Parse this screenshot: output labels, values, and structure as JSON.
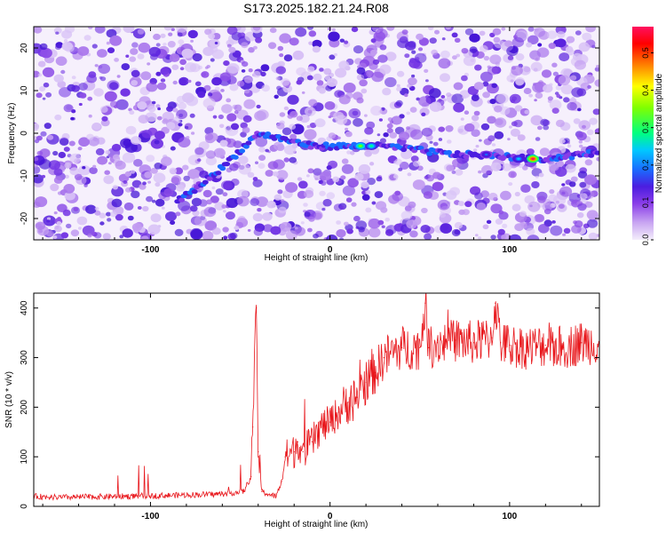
{
  "title": "S173.2025.182.21.24.R08",
  "chart_data": [
    {
      "type": "heatmap",
      "title": "S173.2025.182.21.24.R08",
      "xlabel": "Height of straight line (km)",
      "ylabel": "Frequency (Hz)",
      "xlim": [
        -165,
        150
      ],
      "ylim": [
        -25,
        25
      ],
      "xticks": [
        -100,
        0,
        100
      ],
      "xtick_labels": [
        "-100",
        "0",
        "100"
      ],
      "yticks": [
        20,
        10,
        0,
        -10,
        -20
      ],
      "ytick_labels": [
        "20",
        "10",
        "0",
        "-10",
        "-20"
      ],
      "colorbar": {
        "label": "Normalized spectral amplitude",
        "range": [
          0,
          0.57
        ],
        "ticks": [
          0.0,
          0.1,
          0.2,
          0.3,
          0.4,
          0.5
        ],
        "tick_labels": [
          "0.0",
          "0.1",
          "0.2",
          "0.3",
          "0.4",
          "0.5"
        ],
        "colors": [
          "#f4eefb",
          "#c9a6f2",
          "#8a3de8",
          "#4b1de0",
          "#1a6cff",
          "#00c8ff",
          "#00ff80",
          "#80ff00",
          "#ffff00",
          "#ff8000",
          "#ff0000",
          "#ff1060"
        ]
      },
      "track": {
        "x": [
          -85,
          -75,
          -60,
          -40,
          -30,
          -20,
          -10,
          0,
          10,
          20,
          30,
          40,
          50,
          60,
          70,
          80,
          90,
          100,
          110,
          120,
          130,
          140,
          150
        ],
        "y": [
          -16,
          -13,
          -8,
          0,
          -1,
          -2,
          -3,
          -3,
          -3,
          -3,
          -3,
          -3.5,
          -4,
          -4.5,
          -5,
          -5,
          -5.3,
          -5.5,
          -6,
          -6,
          -5.5,
          -5,
          -4.5
        ]
      },
      "peaks": [
        {
          "x": 17,
          "y": -3,
          "value": 0.35
        },
        {
          "x": 23,
          "y": -3,
          "value": 0.3
        },
        {
          "x": 113,
          "y": -6,
          "value": 0.55
        },
        {
          "x": 105,
          "y": -6,
          "value": 0.25
        },
        {
          "x": 87,
          "y": -5,
          "value": 0.2
        }
      ],
      "grid": false
    },
    {
      "type": "line",
      "xlabel": "Height of straight line (km)",
      "ylabel": "SNR (10 * v/v)",
      "xlim": [
        -165,
        150
      ],
      "ylim": [
        0,
        430
      ],
      "xticks": [
        -100,
        0,
        100
      ],
      "xtick_labels": [
        "-100",
        "0",
        "100"
      ],
      "yticks": [
        0,
        100,
        200,
        300,
        400
      ],
      "ytick_labels": [
        "0",
        "100",
        "200",
        "300",
        "400"
      ],
      "color": "#e8161b",
      "series": [
        {
          "x": [
            -165,
            -150,
            -120,
            -90,
            -60,
            -48,
            -44,
            -43,
            -41,
            -40,
            -38,
            -35,
            -30,
            -27,
            -25,
            -20,
            -18,
            -15,
            -10,
            -5,
            0,
            5,
            10,
            15,
            20,
            25,
            30,
            40,
            50,
            53,
            55,
            60,
            70,
            80,
            90,
            92,
            95,
            100,
            110,
            120,
            130,
            140,
            150
          ],
          "values": [
            20,
            18,
            20,
            22,
            25,
            30,
            60,
            160,
            400,
            110,
            30,
            25,
            20,
            50,
            100,
            110,
            130,
            110,
            130,
            160,
            170,
            190,
            210,
            220,
            250,
            270,
            300,
            320,
            320,
            410,
            320,
            330,
            335,
            330,
            340,
            410,
            330,
            325,
            320,
            325,
            320,
            330,
            330
          ]
        }
      ],
      "grid": false
    }
  ]
}
